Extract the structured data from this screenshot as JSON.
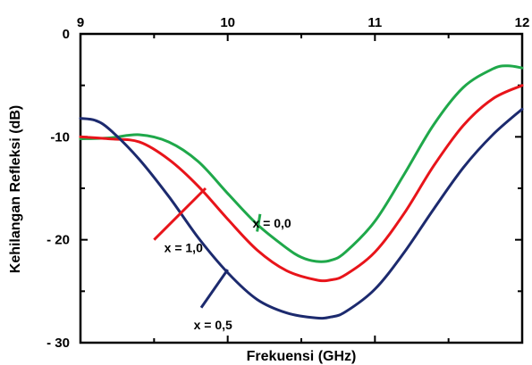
{
  "chart_data": {
    "type": "line",
    "title": "",
    "xlabel": "Frekuensi (GHz)",
    "ylabel": "Kehilangan Refleksi (dB)",
    "xlim": [
      9,
      12
    ],
    "ylim": [
      -30,
      0
    ],
    "x_axis_position": "top",
    "x_ticks": [
      9,
      10,
      11,
      12
    ],
    "x_tick_labels": [
      "9",
      "10",
      "11",
      "12"
    ],
    "y_ticks": [
      0,
      -10,
      -20,
      -30
    ],
    "y_tick_labels": [
      "0",
      "-10",
      "- 20",
      "- 30"
    ],
    "grid": false,
    "series": [
      {
        "name": "x = 0,0",
        "color": "#1fa84a",
        "x": [
          9.0,
          9.2,
          9.4,
          9.6,
          9.8,
          10.0,
          10.2,
          10.4,
          10.5,
          10.6,
          10.7,
          10.8,
          11.0,
          11.2,
          11.4,
          11.6,
          11.8,
          11.9,
          12.0
        ],
        "y": [
          -10.2,
          -10.1,
          -9.8,
          -10.5,
          -12.4,
          -15.5,
          -18.5,
          -20.8,
          -21.7,
          -22.1,
          -22.0,
          -21.2,
          -18.2,
          -13.6,
          -8.8,
          -5.2,
          -3.4,
          -3.1,
          -3.3
        ]
      },
      {
        "name": "x = 1,0",
        "color": "#e8141a",
        "x": [
          9.0,
          9.2,
          9.4,
          9.6,
          9.8,
          10.0,
          10.2,
          10.4,
          10.6,
          10.7,
          10.8,
          11.0,
          11.2,
          11.4,
          11.6,
          11.8,
          12.0
        ],
        "y": [
          -10.0,
          -10.2,
          -10.5,
          -12.2,
          -14.8,
          -18.0,
          -21.0,
          -23.0,
          -23.9,
          -23.9,
          -23.4,
          -21.2,
          -17.4,
          -12.8,
          -8.9,
          -6.3,
          -5.0
        ]
      },
      {
        "name": "x = 0,5",
        "color": "#1c2a6e",
        "x": [
          9.0,
          9.1,
          9.2,
          9.4,
          9.6,
          9.8,
          10.0,
          10.2,
          10.4,
          10.6,
          10.7,
          10.8,
          11.0,
          11.2,
          11.4,
          11.6,
          11.8,
          12.0
        ],
        "y": [
          -8.2,
          -8.4,
          -9.3,
          -12.2,
          -15.8,
          -19.8,
          -23.2,
          -25.8,
          -27.1,
          -27.6,
          -27.5,
          -27.0,
          -24.8,
          -21.2,
          -17.0,
          -13.0,
          -9.8,
          -7.3
        ]
      }
    ],
    "annotations": [
      {
        "text": "x = 0,0",
        "series": "x = 0,0",
        "x": 10.3,
        "y": -18.8,
        "pointer_x": 10.22,
        "pointer_y": -17.5,
        "target_x": 10.2,
        "target_y": -19.2
      },
      {
        "text": "x = 1,0",
        "series": "x = 1,0",
        "x": 9.7,
        "y": -21.2,
        "pointer_x": 9.5,
        "pointer_y": -20.0,
        "target_x": 9.85,
        "target_y": -15.0
      },
      {
        "text": "x = 0,5",
        "series": "x = 0,5",
        "x": 9.9,
        "y": -28.7,
        "pointer_x": 9.82,
        "pointer_y": -26.6,
        "target_x": 10.0,
        "target_y": -22.9
      }
    ]
  }
}
